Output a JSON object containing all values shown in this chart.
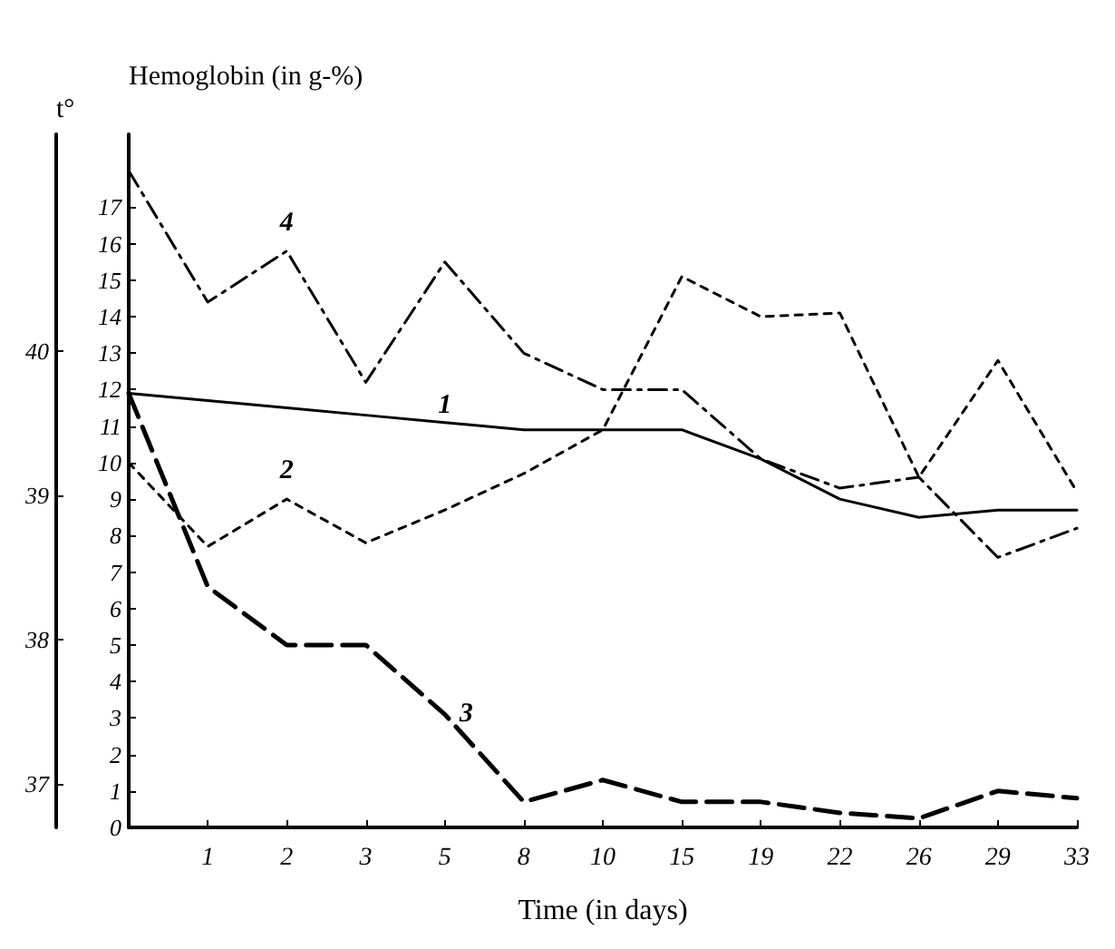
{
  "chart_data": {
    "type": "line",
    "xlabel": "Time (in days)",
    "ylabel": "Hemoglobin (in g-%)",
    "y2label": "t°",
    "categories": [
      null,
      "1",
      "2",
      "3",
      "5",
      "8",
      "10",
      "15",
      "19",
      "22",
      "26",
      "29",
      "33"
    ],
    "series": [
      {
        "name": "1",
        "color": "#000000",
        "line_style": "solid",
        "values": [
          11.9,
          11.7,
          11.5,
          11.3,
          11.1,
          10.9,
          10.9,
          10.9,
          10.1,
          9.0,
          8.5,
          8.7,
          8.7
        ]
      },
      {
        "name": "2",
        "color": "#000000",
        "line_style": "dashed",
        "values": [
          10.0,
          7.7,
          9.0,
          7.8,
          8.7,
          9.7,
          10.9,
          15.1,
          14.0,
          14.1,
          9.6,
          12.8,
          9.2
        ]
      },
      {
        "name": "3",
        "color": "#000000",
        "line_style": "dashed",
        "values": [
          11.9,
          6.6,
          5.0,
          5.0,
          3.1,
          0.7,
          1.3,
          0.7,
          0.7,
          0.4,
          0.25,
          1.0,
          0.8
        ]
      },
      {
        "name": "4",
        "color": "#000000",
        "line_style": "dashed",
        "values": [
          18.0,
          14.4,
          15.8,
          12.2,
          15.5,
          13.0,
          12.0,
          12.0,
          10.1,
          9.3,
          9.6,
          7.4,
          8.2
        ]
      }
    ],
    "ylim": [
      0,
      19
    ],
    "yticks": [
      0,
      1,
      2,
      3,
      4,
      5,
      6,
      7,
      8,
      9,
      10,
      11,
      12,
      13,
      14,
      15,
      16,
      17
    ],
    "y2lim": [
      36.7,
      41.5
    ],
    "y2ticks": [
      37,
      38,
      39,
      40
    ],
    "grid": false,
    "legend": false,
    "marker": "none"
  }
}
